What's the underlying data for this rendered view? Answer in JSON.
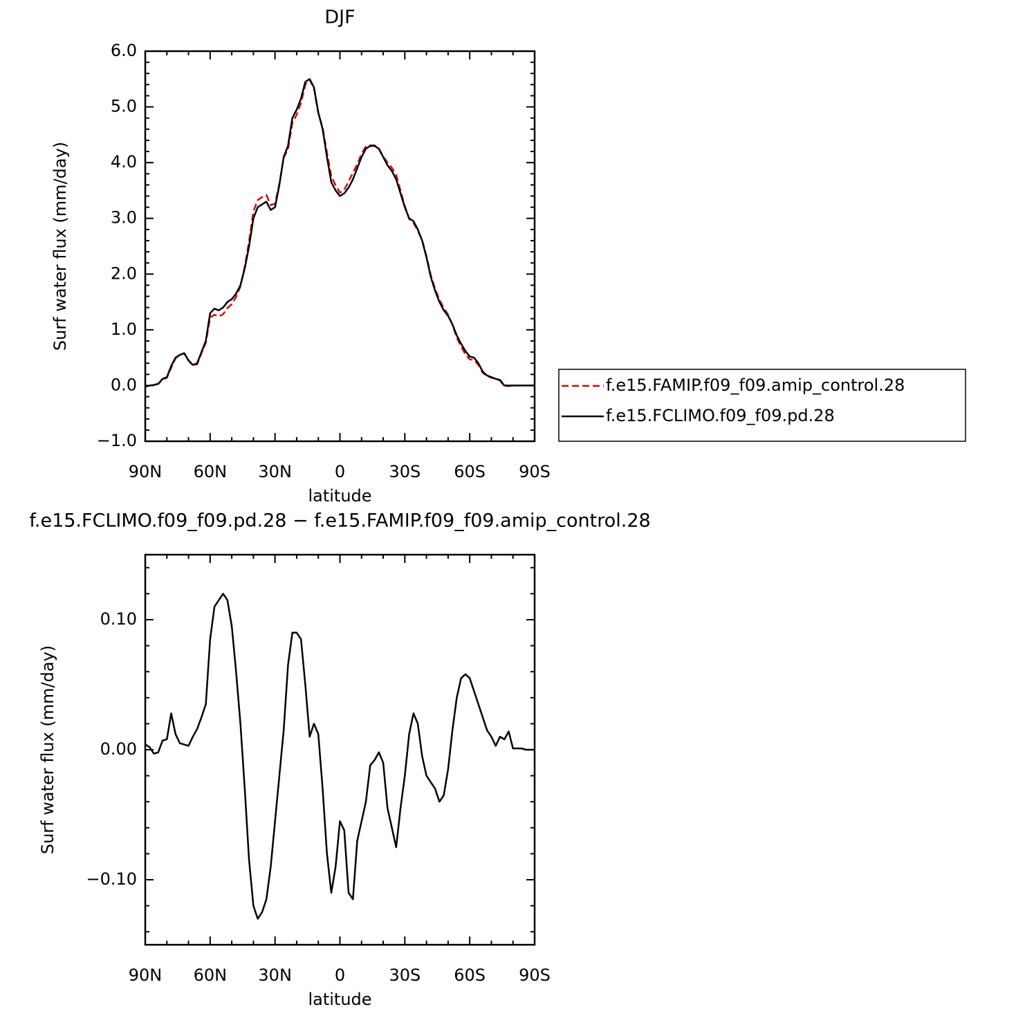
{
  "chart_data": [
    {
      "type": "line",
      "title": "DJF",
      "xlabel": "latitude",
      "ylabel": "Surf water flux (mm/day)",
      "x": [
        90,
        88,
        86,
        84,
        82,
        80,
        78,
        76,
        74,
        72,
        70,
        68,
        66,
        64,
        62,
        60,
        58,
        56,
        54,
        52,
        50,
        48,
        46,
        44,
        42,
        40,
        38,
        36,
        34,
        32,
        30,
        28,
        26,
        24,
        22,
        20,
        18,
        16,
        14,
        12,
        10,
        8,
        6,
        4,
        2,
        0,
        -2,
        -4,
        -6,
        -8,
        -10,
        -12,
        -14,
        -16,
        -18,
        -20,
        -22,
        -24,
        -26,
        -28,
        -30,
        -32,
        -34,
        -36,
        -38,
        -40,
        -42,
        -44,
        -46,
        -48,
        -50,
        -52,
        -54,
        -56,
        -58,
        -60,
        -62,
        -64,
        -66,
        -68,
        -70,
        -72,
        -74,
        -76,
        -78,
        -80,
        -82,
        -84,
        -86,
        -88,
        -90
      ],
      "series": [
        {
          "name": "f.e15.FAMIP.f09_f09.amip_control.28",
          "color": "#e00000",
          "linestyle": "dashed",
          "values": [
            -0.02,
            0.0,
            0.01,
            0.03,
            0.11,
            0.14,
            0.32,
            0.49,
            0.55,
            0.58,
            0.45,
            0.36,
            0.38,
            0.58,
            0.77,
            1.22,
            1.27,
            1.24,
            1.28,
            1.39,
            1.46,
            1.59,
            1.78,
            2.13,
            2.59,
            3.12,
            3.33,
            3.38,
            3.42,
            3.24,
            3.26,
            3.62,
            4.09,
            4.24,
            4.71,
            4.86,
            5.07,
            5.4,
            5.49,
            5.33,
            4.89,
            4.63,
            4.18,
            3.76,
            3.59,
            3.46,
            3.51,
            3.66,
            3.82,
            3.97,
            4.16,
            4.29,
            4.31,
            4.31,
            4.25,
            4.11,
            4.0,
            3.91,
            3.78,
            3.5,
            3.22,
            2.99,
            2.92,
            2.78,
            2.61,
            2.32,
            1.98,
            1.73,
            1.54,
            1.39,
            1.27,
            1.09,
            0.86,
            0.7,
            0.56,
            0.47,
            0.46,
            0.37,
            0.23,
            0.17,
            0.14,
            0.12,
            0.09,
            -0.01,
            -0.01,
            0.0,
            0.0,
            0.0,
            0.0,
            0.0,
            0.0
          ]
        },
        {
          "name": "f.e15.FCLIMO.f09_f09.pd.28",
          "color": "#000000",
          "linestyle": "solid",
          "values": [
            -0.02,
            0.0,
            0.01,
            0.03,
            0.12,
            0.15,
            0.35,
            0.5,
            0.55,
            0.58,
            0.45,
            0.37,
            0.4,
            0.6,
            0.8,
            1.3,
            1.38,
            1.35,
            1.4,
            1.5,
            1.55,
            1.65,
            1.8,
            2.1,
            2.5,
            3.0,
            3.2,
            3.25,
            3.3,
            3.15,
            3.2,
            3.6,
            4.1,
            4.3,
            4.8,
            4.95,
            5.15,
            5.45,
            5.5,
            5.35,
            4.9,
            4.6,
            4.1,
            3.65,
            3.5,
            3.4,
            3.45,
            3.55,
            3.7,
            3.9,
            4.1,
            4.25,
            4.3,
            4.3,
            4.25,
            4.1,
            3.95,
            3.85,
            3.7,
            3.45,
            3.2,
            3.0,
            2.95,
            2.8,
            2.6,
            2.3,
            1.95,
            1.7,
            1.5,
            1.35,
            1.25,
            1.1,
            0.9,
            0.75,
            0.62,
            0.52,
            0.5,
            0.4,
            0.25,
            0.18,
            0.15,
            0.12,
            0.1,
            0.0,
            0.0,
            0.0,
            0.0,
            0.0,
            0.0,
            0.0,
            0.0
          ]
        }
      ],
      "xlim": [
        90,
        -90
      ],
      "xticks": [
        {
          "value": 90,
          "label": "90N"
        },
        {
          "value": 60,
          "label": "60N"
        },
        {
          "value": 30,
          "label": "30N"
        },
        0,
        {
          "value": -30,
          "label": "30S"
        },
        {
          "value": -60,
          "label": "60S"
        },
        {
          "value": -90,
          "label": "90S"
        }
      ],
      "xminorticks": [
        80,
        70,
        50,
        40,
        20,
        10,
        -10,
        -20,
        -40,
        -50,
        -70,
        -80
      ],
      "ylim": [
        -1,
        6
      ],
      "yticks": [
        {
          "value": -1,
          "label": "−1.0"
        },
        {
          "value": 0,
          "label": "0.0"
        },
        {
          "value": 1,
          "label": "1.0"
        },
        {
          "value": 2,
          "label": "2.0"
        },
        {
          "value": 3,
          "label": "3.0"
        },
        {
          "value": 4,
          "label": "4.0"
        },
        {
          "value": 5,
          "label": "5.0"
        },
        {
          "value": 6,
          "label": "6.0"
        }
      ],
      "yminorticks": [
        -0.8,
        -0.6,
        -0.4,
        -0.2,
        0.2,
        0.4,
        0.6,
        0.8,
        1.2,
        1.4,
        1.6,
        1.8,
        2.2,
        2.4,
        2.6,
        2.8,
        3.2,
        3.4,
        3.6,
        3.8,
        4.2,
        4.4,
        4.6,
        4.8,
        5.2,
        5.4,
        5.6,
        5.8
      ],
      "legend": "right"
    },
    {
      "type": "line",
      "title": "f.e15.FCLIMO.f09_f09.pd.28 − f.e15.FAMIP.f09_f09.amip_control.28",
      "xlabel": "latitude",
      "ylabel": "Surf water flux (mm/day)",
      "x": [
        90,
        88,
        86,
        84,
        82,
        80,
        78,
        76,
        74,
        72,
        70,
        68,
        66,
        64,
        62,
        60,
        58,
        56,
        54,
        52,
        50,
        48,
        46,
        44,
        42,
        40,
        38,
        36,
        34,
        32,
        30,
        28,
        26,
        24,
        22,
        20,
        18,
        16,
        14,
        12,
        10,
        8,
        6,
        4,
        2,
        0,
        -2,
        -4,
        -6,
        -8,
        -10,
        -12,
        -14,
        -16,
        -18,
        -20,
        -22,
        -24,
        -26,
        -28,
        -30,
        -32,
        -34,
        -36,
        -38,
        -40,
        -42,
        -44,
        -46,
        -48,
        -50,
        -52,
        -54,
        -56,
        -58,
        -60,
        -62,
        -64,
        -66,
        -68,
        -70,
        -72,
        -74,
        -76,
        -78,
        -80,
        -82,
        -84,
        -86,
        -88,
        -90
      ],
      "color": "#000000",
      "values": [
        0.004,
        0.002,
        -0.003,
        -0.002,
        0.007,
        0.008,
        0.028,
        0.012,
        0.005,
        0.004,
        0.003,
        0.01,
        0.016,
        0.025,
        0.035,
        0.085,
        0.11,
        0.115,
        0.12,
        0.115,
        0.095,
        0.06,
        0.02,
        -0.03,
        -0.085,
        -0.12,
        -0.13,
        -0.125,
        -0.115,
        -0.09,
        -0.055,
        -0.02,
        0.015,
        0.065,
        0.09,
        0.09,
        0.085,
        0.05,
        0.01,
        0.02,
        0.012,
        -0.03,
        -0.08,
        -0.11,
        -0.09,
        -0.055,
        -0.062,
        -0.11,
        -0.115,
        -0.07,
        -0.055,
        -0.04,
        -0.012,
        -0.008,
        -0.002,
        -0.01,
        -0.045,
        -0.06,
        -0.075,
        -0.045,
        -0.02,
        0.012,
        0.028,
        0.02,
        -0.005,
        -0.02,
        -0.025,
        -0.03,
        -0.04,
        -0.035,
        -0.015,
        0.015,
        0.04,
        0.055,
        0.058,
        0.055,
        0.045,
        0.035,
        0.025,
        0.015,
        0.01,
        0.003,
        0.01,
        0.008,
        0.014,
        0.001,
        0.001,
        0.001,
        0.0,
        0.0,
        0.0
      ],
      "xlim": [
        90,
        -90
      ],
      "xticks": [
        {
          "value": 90,
          "label": "90N"
        },
        {
          "value": 60,
          "label": "60N"
        },
        {
          "value": 30,
          "label": "30N"
        },
        0,
        {
          "value": -30,
          "label": "30S"
        },
        {
          "value": -60,
          "label": "60S"
        },
        {
          "value": -90,
          "label": "90S"
        }
      ],
      "xminorticks": [
        80,
        70,
        50,
        40,
        20,
        10,
        -10,
        -20,
        -40,
        -50,
        -70,
        -80
      ],
      "ylim": [
        -0.15,
        0.15
      ],
      "yticks": [
        {
          "value": -0.1,
          "label": "−0.10"
        },
        {
          "value": 0,
          "label": "0.00"
        },
        {
          "value": 0.1,
          "label": "0.10"
        }
      ],
      "yminorticks": [
        -0.14,
        -0.12,
        -0.08,
        -0.06,
        -0.04,
        -0.02,
        0.02,
        0.04,
        0.06,
        0.08,
        0.12,
        0.14
      ]
    }
  ]
}
